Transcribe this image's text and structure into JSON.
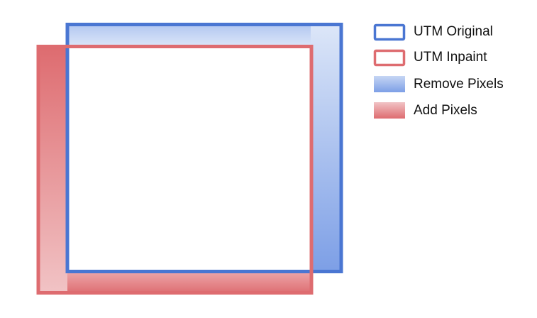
{
  "colors": {
    "original_stroke": "#4a76d2",
    "inpaint_stroke": "#de6c70",
    "remove_light": "#c6d6f4",
    "remove_dark": "#7d9fe6",
    "add_light": "#f1c3c5",
    "add_dark": "#de6c70",
    "background": "#ffffff",
    "text": "#111111"
  },
  "legend": {
    "items": [
      {
        "label": "UTM Original",
        "icon": "outline-box-blue"
      },
      {
        "label": "UTM Inpaint",
        "icon": "outline-box-red"
      },
      {
        "label": "Remove Pixels",
        "icon": "gradient-swatch-blue"
      },
      {
        "label": "Add Pixels",
        "icon": "gradient-swatch-red"
      }
    ]
  }
}
